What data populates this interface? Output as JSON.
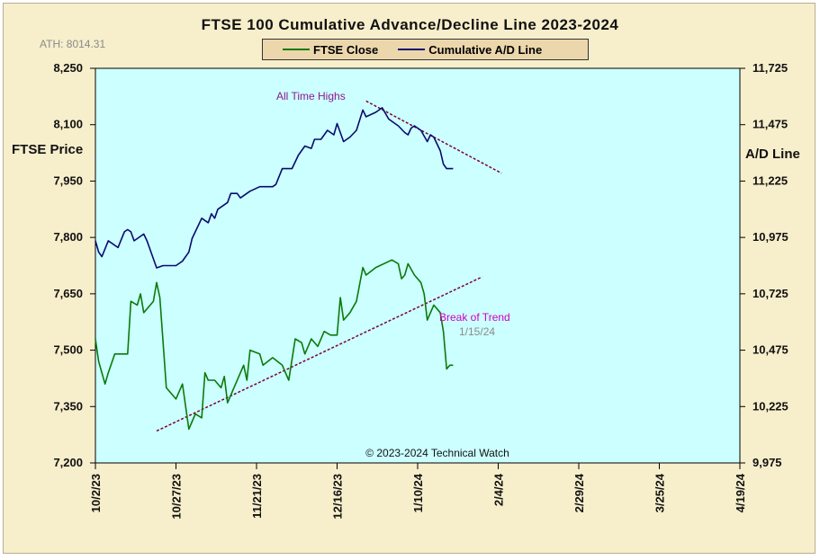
{
  "chart_data": {
    "type": "line",
    "title": "FTSE 100 Cumulative Advance/Decline Line 2023-2024",
    "ath_label": "ATH: 8014.31",
    "ylabel_left": "FTSE Price",
    "ylabel_right": "A/D Line",
    "x_ticks": [
      "10/2/23",
      "10/27/23",
      "11/21/23",
      "12/16/23",
      "1/10/24",
      "2/4/24",
      "2/29/24",
      "3/25/24",
      "4/19/24"
    ],
    "x_range": [
      "2023-10-02",
      "2024-04-19"
    ],
    "y_left_ticks": [
      "8,250",
      "8,100",
      "7,950",
      "7,800",
      "7,650",
      "7,500",
      "7,350",
      "7,200"
    ],
    "y_left_range": [
      7200,
      8250
    ],
    "y_right_ticks": [
      "11,725",
      "11,475",
      "11,225",
      "10,975",
      "10,725",
      "10,475",
      "10,225",
      "9,975"
    ],
    "y_right_range": [
      9975,
      11725
    ],
    "grid": false,
    "legend_position": "top-center",
    "copyright": "© 2023-2024  Technical  Watch",
    "annotations": {
      "all_time_highs": "All Time  Highs",
      "break_of_trend": "Break  of Trend",
      "break_date": "1/15/24"
    },
    "trendlines": [
      {
        "id": "ftse-support",
        "from": [
          "2023-10-21",
          7285
        ],
        "to": [
          "2024-01-30",
          7695
        ],
        "axis": "left"
      },
      {
        "id": "ad-resistance",
        "from": [
          "2023-12-25",
          11580
        ],
        "to": [
          "2024-02-05",
          11260
        ],
        "axis": "right"
      }
    ],
    "series": [
      {
        "name": "FTSE Close",
        "axis": "left",
        "color": "#0a7a0a",
        "points": [
          [
            "2023-10-02",
            7530
          ],
          [
            "2023-10-03",
            7470
          ],
          [
            "2023-10-05",
            7410
          ],
          [
            "2023-10-06",
            7440
          ],
          [
            "2023-10-08",
            7490
          ],
          [
            "2023-10-10",
            7490
          ],
          [
            "2023-10-12",
            7490
          ],
          [
            "2023-10-13",
            7630
          ],
          [
            "2023-10-15",
            7620
          ],
          [
            "2023-10-16",
            7650
          ],
          [
            "2023-10-17",
            7600
          ],
          [
            "2023-10-19",
            7620
          ],
          [
            "2023-10-20",
            7630
          ],
          [
            "2023-10-21",
            7680
          ],
          [
            "2023-10-22",
            7640
          ],
          [
            "2023-10-24",
            7400
          ],
          [
            "2023-10-27",
            7370
          ],
          [
            "2023-10-29",
            7410
          ],
          [
            "2023-10-31",
            7290
          ],
          [
            "2023-11-01",
            7310
          ],
          [
            "2023-11-02",
            7330
          ],
          [
            "2023-11-04",
            7320
          ],
          [
            "2023-11-05",
            7440
          ],
          [
            "2023-11-06",
            7420
          ],
          [
            "2023-11-07",
            7420
          ],
          [
            "2023-11-08",
            7420
          ],
          [
            "2023-11-10",
            7400
          ],
          [
            "2023-11-11",
            7430
          ],
          [
            "2023-11-12",
            7360
          ],
          [
            "2023-11-14",
            7400
          ],
          [
            "2023-11-17",
            7460
          ],
          [
            "2023-11-18",
            7420
          ],
          [
            "2023-11-19",
            7500
          ],
          [
            "2023-11-22",
            7490
          ],
          [
            "2023-11-23",
            7460
          ],
          [
            "2023-11-26",
            7480
          ],
          [
            "2023-11-29",
            7460
          ],
          [
            "2023-12-01",
            7420
          ],
          [
            "2023-12-03",
            7530
          ],
          [
            "2023-12-05",
            7520
          ],
          [
            "2023-12-06",
            7490
          ],
          [
            "2023-12-08",
            7530
          ],
          [
            "2023-12-10",
            7510
          ],
          [
            "2023-12-12",
            7550
          ],
          [
            "2023-12-14",
            7540
          ],
          [
            "2023-12-16",
            7540
          ],
          [
            "2023-12-17",
            7640
          ],
          [
            "2023-12-18",
            7580
          ],
          [
            "2023-12-20",
            7600
          ],
          [
            "2023-12-22",
            7630
          ],
          [
            "2023-12-24",
            7720
          ],
          [
            "2023-12-25",
            7700
          ],
          [
            "2023-12-28",
            7720
          ],
          [
            "2024-01-02",
            7740
          ],
          [
            "2024-01-04",
            7730
          ],
          [
            "2024-01-05",
            7690
          ],
          [
            "2024-01-06",
            7700
          ],
          [
            "2024-01-07",
            7730
          ],
          [
            "2024-01-09",
            7700
          ],
          [
            "2024-01-11",
            7680
          ],
          [
            "2024-01-12",
            7650
          ],
          [
            "2024-01-13",
            7580
          ],
          [
            "2024-01-15",
            7620
          ],
          [
            "2024-01-17",
            7600
          ],
          [
            "2024-01-18",
            7550
          ],
          [
            "2024-01-19",
            7450
          ],
          [
            "2024-01-20",
            7460
          ],
          [
            "2024-01-21",
            7460
          ]
        ]
      },
      {
        "name": "Cumulative A/D Line",
        "axis": "right",
        "color": "#0a0a6e",
        "points": [
          [
            "2023-10-02",
            10960
          ],
          [
            "2023-10-03",
            10910
          ],
          [
            "2023-10-04",
            10890
          ],
          [
            "2023-10-06",
            10960
          ],
          [
            "2023-10-09",
            10930
          ],
          [
            "2023-10-11",
            11000
          ],
          [
            "2023-10-12",
            11010
          ],
          [
            "2023-10-13",
            11000
          ],
          [
            "2023-10-14",
            10960
          ],
          [
            "2023-10-17",
            10990
          ],
          [
            "2023-10-18",
            10960
          ],
          [
            "2023-10-21",
            10840
          ],
          [
            "2023-10-23",
            10850
          ],
          [
            "2023-10-25",
            10850
          ],
          [
            "2023-10-27",
            10850
          ],
          [
            "2023-10-29",
            10870
          ],
          [
            "2023-10-31",
            10910
          ],
          [
            "2023-11-01",
            10970
          ],
          [
            "2023-11-04",
            11060
          ],
          [
            "2023-11-06",
            11040
          ],
          [
            "2023-11-07",
            11080
          ],
          [
            "2023-11-08",
            11060
          ],
          [
            "2023-11-09",
            11100
          ],
          [
            "2023-11-12",
            11130
          ],
          [
            "2023-11-13",
            11170
          ],
          [
            "2023-11-15",
            11170
          ],
          [
            "2023-11-16",
            11150
          ],
          [
            "2023-11-19",
            11180
          ],
          [
            "2023-11-22",
            11200
          ],
          [
            "2023-11-24",
            11200
          ],
          [
            "2023-11-26",
            11200
          ],
          [
            "2023-11-27",
            11210
          ],
          [
            "2023-11-29",
            11280
          ],
          [
            "2023-12-02",
            11280
          ],
          [
            "2023-12-04",
            11340
          ],
          [
            "2023-12-06",
            11380
          ],
          [
            "2023-12-08",
            11370
          ],
          [
            "2023-12-09",
            11410
          ],
          [
            "2023-12-11",
            11410
          ],
          [
            "2023-12-13",
            11450
          ],
          [
            "2023-12-15",
            11430
          ],
          [
            "2023-12-16",
            11480
          ],
          [
            "2023-12-18",
            11400
          ],
          [
            "2023-12-20",
            11420
          ],
          [
            "2023-12-22",
            11450
          ],
          [
            "2023-12-24",
            11540
          ],
          [
            "2023-12-25",
            11510
          ],
          [
            "2023-12-28",
            11530
          ],
          [
            "2023-12-30",
            11550
          ],
          [
            "2024-01-01",
            11500
          ],
          [
            "2024-01-02",
            11490
          ],
          [
            "2024-01-04",
            11470
          ],
          [
            "2024-01-06",
            11440
          ],
          [
            "2024-01-07",
            11430
          ],
          [
            "2024-01-08",
            11460
          ],
          [
            "2024-01-09",
            11470
          ],
          [
            "2024-01-11",
            11450
          ],
          [
            "2024-01-13",
            11400
          ],
          [
            "2024-01-14",
            11430
          ],
          [
            "2024-01-15",
            11420
          ],
          [
            "2024-01-17",
            11360
          ],
          [
            "2024-01-18",
            11300
          ],
          [
            "2024-01-19",
            11280
          ],
          [
            "2024-01-20",
            11280
          ],
          [
            "2024-01-21",
            11280
          ]
        ]
      }
    ]
  }
}
